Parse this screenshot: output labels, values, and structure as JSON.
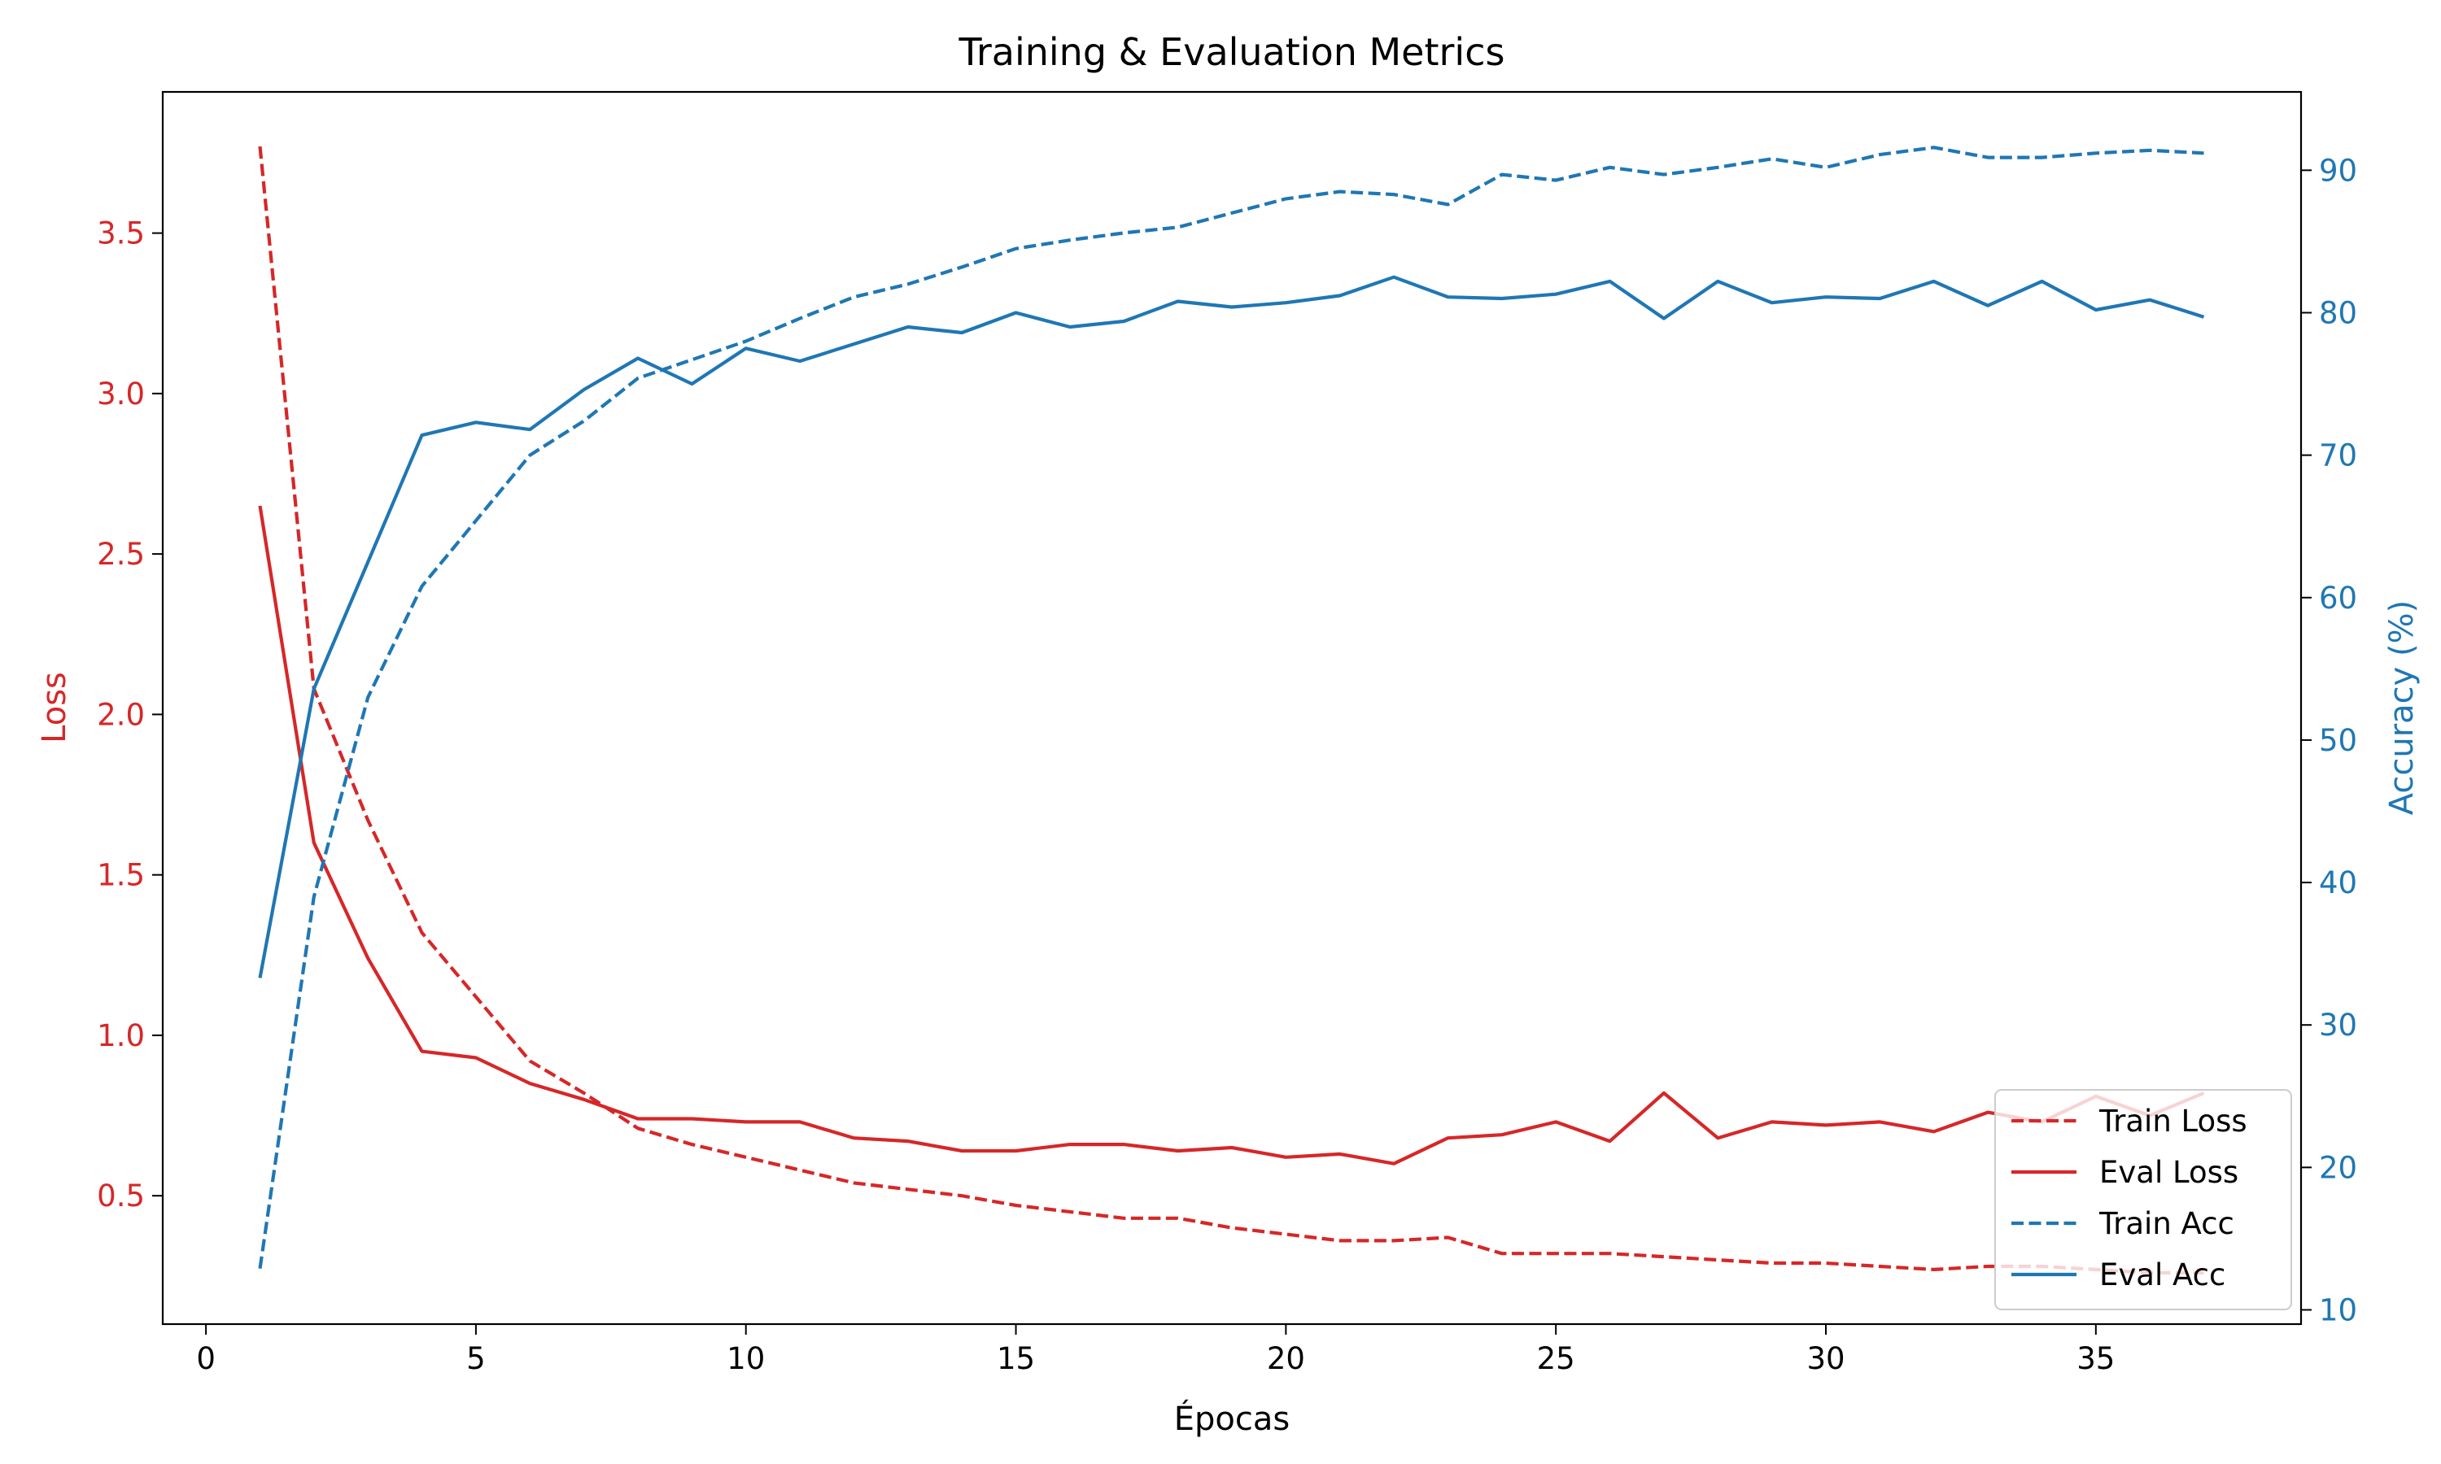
{
  "chart_data": {
    "type": "line",
    "title": "Training & Evaluation Metrics",
    "xlabel": "Épocas",
    "ylabel_left": "Loss",
    "ylabel_right": "Accuracy (%)",
    "xlim": [
      -0.8,
      38.8
    ],
    "ylim_left": [
      0.1,
      3.94
    ],
    "ylim_right": [
      9.0,
      95.5
    ],
    "x_ticks": [
      0,
      5,
      10,
      15,
      20,
      25,
      30,
      35
    ],
    "y_ticks_left": [
      0.5,
      1.0,
      1.5,
      2.0,
      2.5,
      3.0,
      3.5
    ],
    "y_ticks_right": [
      10,
      20,
      30,
      40,
      50,
      60,
      70,
      80,
      90
    ],
    "grid": false,
    "legend_position": "lower-right",
    "colors": {
      "loss": "#d62728",
      "accuracy": "#1f77b4"
    },
    "x": [
      1,
      2,
      3,
      4,
      5,
      6,
      7,
      8,
      9,
      10,
      11,
      12,
      13,
      14,
      15,
      16,
      17,
      18,
      19,
      20,
      21,
      22,
      23,
      24,
      25,
      26,
      27,
      28,
      29,
      30,
      31,
      32,
      33,
      34,
      35,
      36,
      37
    ],
    "series": [
      {
        "name": "Train Loss",
        "axis": "left",
        "style": "dashed",
        "color": "#d62728",
        "values": [
          3.77,
          2.08,
          1.67,
          1.32,
          1.12,
          0.92,
          0.82,
          0.71,
          0.66,
          0.62,
          0.58,
          0.54,
          0.52,
          0.5,
          0.47,
          0.45,
          0.43,
          0.43,
          0.4,
          0.38,
          0.36,
          0.36,
          0.37,
          0.32,
          0.32,
          0.32,
          0.31,
          0.3,
          0.29,
          0.29,
          0.28,
          0.27,
          0.28,
          0.28,
          0.27,
          0.26,
          0.26
        ]
      },
      {
        "name": "Eval Loss",
        "axis": "left",
        "style": "solid",
        "color": "#d62728",
        "values": [
          2.65,
          1.6,
          1.24,
          0.95,
          0.93,
          0.85,
          0.8,
          0.74,
          0.74,
          0.73,
          0.73,
          0.68,
          0.67,
          0.64,
          0.64,
          0.66,
          0.66,
          0.64,
          0.65,
          0.62,
          0.63,
          0.6,
          0.68,
          0.69,
          0.73,
          0.67,
          0.82,
          0.68,
          0.73,
          0.72,
          0.73,
          0.7,
          0.76,
          0.73,
          0.81,
          0.75,
          0.82
        ]
      },
      {
        "name": "Train Acc",
        "axis": "right",
        "style": "dashed",
        "color": "#1f77b4",
        "values": [
          12.9,
          39.0,
          53.0,
          60.8,
          65.4,
          70.0,
          72.4,
          75.4,
          76.7,
          78.0,
          79.6,
          81.1,
          82.0,
          83.2,
          84.5,
          85.1,
          85.6,
          86.0,
          87.0,
          88.0,
          88.5,
          88.3,
          87.6,
          89.7,
          89.3,
          90.2,
          89.7,
          90.2,
          90.8,
          90.2,
          91.1,
          91.6,
          90.9,
          90.9,
          91.2,
          91.4,
          91.2
        ]
      },
      {
        "name": "Eval Acc",
        "axis": "right",
        "style": "solid",
        "color": "#1f77b4",
        "values": [
          33.3,
          53.6,
          62.5,
          71.4,
          72.3,
          71.8,
          74.6,
          76.8,
          75.0,
          77.5,
          76.6,
          77.8,
          79.0,
          78.6,
          80.0,
          79.0,
          79.4,
          80.8,
          80.4,
          80.7,
          81.2,
          82.5,
          81.1,
          81.0,
          81.3,
          82.2,
          79.6,
          82.2,
          80.7,
          81.1,
          81.0,
          82.2,
          80.5,
          82.2,
          80.2,
          80.9,
          79.7
        ]
      }
    ]
  }
}
